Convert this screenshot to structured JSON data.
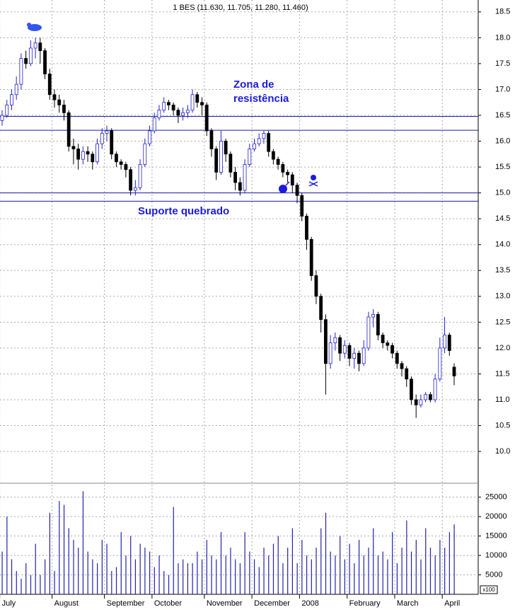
{
  "chart_data": {
    "type": "candlestick",
    "title": "1 BES (11.630, 11.705, 11.280, 11.460)",
    "categories": [
      "July",
      null,
      null,
      null,
      null,
      null,
      null,
      null,
      null,
      null,
      null,
      "August",
      null,
      null,
      null,
      null,
      null,
      null,
      null,
      null,
      null,
      null,
      "September",
      null,
      null,
      null,
      null,
      null,
      null,
      null,
      null,
      null,
      "October",
      null,
      null,
      null,
      null,
      null,
      null,
      null,
      null,
      null,
      null,
      "November",
      null,
      null,
      null,
      null,
      null,
      null,
      null,
      null,
      null,
      "December",
      null,
      null,
      null,
      null,
      null,
      null,
      null,
      null,
      null,
      "2008",
      null,
      null,
      null,
      null,
      null,
      null,
      null,
      null,
      null,
      "February",
      null,
      null,
      null,
      null,
      null,
      null,
      null,
      null,
      null,
      "March",
      null,
      null,
      null,
      null,
      null,
      null,
      null,
      null,
      null,
      "April",
      null,
      null
    ],
    "open": [
      16.4,
      16.5,
      16.7,
      16.9,
      17.1,
      17.6,
      17.5,
      17.8,
      17.9,
      17.75,
      17.3,
      16.9,
      16.8,
      16.7,
      16.55,
      15.9,
      15.85,
      15.65,
      15.8,
      15.75,
      15.6,
      15.95,
      16.15,
      16.2,
      15.75,
      15.6,
      15.55,
      15.45,
      15.05,
      15.1,
      15.55,
      15.95,
      16.2,
      16.45,
      16.6,
      16.75,
      16.7,
      16.6,
      16.5,
      16.55,
      16.6,
      16.9,
      16.75,
      16.7,
      16.2,
      15.85,
      15.4,
      16.0,
      15.75,
      15.4,
      15.2,
      15.05,
      15.55,
      15.85,
      15.95,
      16.05,
      16.15,
      15.8,
      15.65,
      15.55,
      15.4,
      15.35,
      15.15,
      14.95,
      14.55,
      14.1,
      13.4,
      13.0,
      12.55,
      11.7,
      12.1,
      12.2,
      11.9,
      12.05,
      11.8,
      11.9,
      11.7,
      12.0,
      12.6,
      12.65,
      12.25,
      12.1,
      12.05,
      11.9,
      11.7,
      11.6,
      11.4,
      11.0,
      10.9,
      11.0,
      11.1,
      11.0,
      11.4,
      12.0,
      12.25,
      11.63
    ],
    "high": [
      16.6,
      16.8,
      17.0,
      17.25,
      17.7,
      17.75,
      17.95,
      18.0,
      18.0,
      17.8,
      17.4,
      17.0,
      16.9,
      16.8,
      16.6,
      16.05,
      15.95,
      15.9,
      15.9,
      15.8,
      16.05,
      16.25,
      16.3,
      16.25,
      15.8,
      15.65,
      15.6,
      15.5,
      15.25,
      15.65,
      16.05,
      16.3,
      16.55,
      16.7,
      16.85,
      16.8,
      16.75,
      16.65,
      16.65,
      16.7,
      17.0,
      16.95,
      16.85,
      16.75,
      16.25,
      15.9,
      16.2,
      16.05,
      15.8,
      15.5,
      15.3,
      15.65,
      15.95,
      16.05,
      16.15,
      16.2,
      16.2,
      15.85,
      15.7,
      15.6,
      15.45,
      15.4,
      15.2,
      15.0,
      14.6,
      14.15,
      13.5,
      13.05,
      12.65,
      12.25,
      12.3,
      12.25,
      12.15,
      12.1,
      12.0,
      11.95,
      12.15,
      12.7,
      12.75,
      12.7,
      12.3,
      12.15,
      12.1,
      11.95,
      11.75,
      11.65,
      11.45,
      11.1,
      11.1,
      11.15,
      11.15,
      11.5,
      12.2,
      12.6,
      12.3,
      11.705
    ],
    "low": [
      16.3,
      16.45,
      16.6,
      16.8,
      17.0,
      17.4,
      17.45,
      17.6,
      17.5,
      17.2,
      16.8,
      16.65,
      16.55,
      16.4,
      15.8,
      15.55,
      15.45,
      15.55,
      15.6,
      15.45,
      15.55,
      15.85,
      16.0,
      15.65,
      15.5,
      15.45,
      15.3,
      14.95,
      14.95,
      15.05,
      15.5,
      15.9,
      16.15,
      16.4,
      16.55,
      16.6,
      16.5,
      16.35,
      16.4,
      16.45,
      16.55,
      16.65,
      16.5,
      16.1,
      15.7,
      15.25,
      15.35,
      15.6,
      15.3,
      15.05,
      14.95,
      15.0,
      15.5,
      15.8,
      15.9,
      15.95,
      15.7,
      15.55,
      15.45,
      15.3,
      15.2,
      15.0,
      14.8,
      14.45,
      13.9,
      13.3,
      12.85,
      12.3,
      11.1,
      11.6,
      11.95,
      11.75,
      11.8,
      11.65,
      11.6,
      11.55,
      11.65,
      11.95,
      12.4,
      12.15,
      12.0,
      11.95,
      11.8,
      11.6,
      11.45,
      11.25,
      10.9,
      10.65,
      10.85,
      10.95,
      10.95,
      10.95,
      11.35,
      11.9,
      11.85,
      11.28
    ],
    "close": [
      16.5,
      16.7,
      16.9,
      17.1,
      17.6,
      17.5,
      17.8,
      17.9,
      17.75,
      17.3,
      16.9,
      16.8,
      16.7,
      16.55,
      15.9,
      15.85,
      15.65,
      15.8,
      15.75,
      15.6,
      15.95,
      16.15,
      16.2,
      15.75,
      15.6,
      15.55,
      15.45,
      15.05,
      15.1,
      15.55,
      15.95,
      16.2,
      16.45,
      16.6,
      16.75,
      16.7,
      16.6,
      16.5,
      16.55,
      16.6,
      16.9,
      16.75,
      16.7,
      16.2,
      15.85,
      15.4,
      16.0,
      15.75,
      15.4,
      15.2,
      15.05,
      15.55,
      15.85,
      15.95,
      16.05,
      16.15,
      15.8,
      15.65,
      15.55,
      15.4,
      15.35,
      15.15,
      14.95,
      14.55,
      14.1,
      13.4,
      13.0,
      12.55,
      11.7,
      12.1,
      12.2,
      11.9,
      12.05,
      11.8,
      11.9,
      11.7,
      12.0,
      12.6,
      12.65,
      12.25,
      12.1,
      12.05,
      11.9,
      11.7,
      11.6,
      11.4,
      11.0,
      10.9,
      11.0,
      11.1,
      11.0,
      11.4,
      12.0,
      12.25,
      11.95,
      11.46
    ],
    "volume": [
      11000,
      20000,
      9000,
      6000,
      4000,
      8000,
      5000,
      13000,
      5000,
      9000,
      21000,
      6000,
      24000,
      23000,
      17000,
      14000,
      12000,
      26500,
      11000,
      9000,
      8000,
      14000,
      13000,
      6000,
      7000,
      16000,
      10000,
      15000,
      9000,
      13000,
      12000,
      11000,
      7000,
      10000,
      6000,
      5000,
      22500,
      8000,
      9000,
      8000,
      8000,
      11000,
      9000,
      14000,
      10000,
      9000,
      16000,
      10000,
      12000,
      9000,
      8000,
      16000,
      11000,
      9000,
      7000,
      12000,
      10000,
      13000,
      15000,
      8000,
      12000,
      17000,
      8000,
      14000,
      10000,
      9000,
      12000,
      17000,
      21000,
      11000,
      10000,
      15000,
      9000,
      13000,
      8000,
      14000,
      10000,
      12000,
      17000,
      10000,
      11000,
      9000,
      16000,
      8000,
      12000,
      19000,
      11000,
      14000,
      9000,
      17000,
      12000,
      10000,
      14000,
      12000,
      16000,
      18000
    ],
    "ylim": [
      9.7,
      18.73
    ],
    "yticks": [
      18.5,
      {
        "value": 18,
        "label": "18.0"
      },
      17.5,
      {
        "value": 17,
        "label": "17.0"
      },
      16.5,
      {
        "value": 16,
        "label": "16.0"
      },
      15.5,
      {
        "value": 15,
        "label": "15.0"
      },
      14.5,
      {
        "value": 14,
        "label": "14.0"
      },
      13.5,
      {
        "value": 13,
        "label": "13.0"
      },
      12.5,
      {
        "value": 12,
        "label": "12.0"
      },
      11.5,
      {
        "value": 11,
        "label": "11.0"
      },
      10.5,
      {
        "value": 10,
        "label": "10.0"
      }
    ],
    "y2lim": [
      0,
      28400
    ],
    "y2ticks": [
      25000,
      20000,
      15000,
      10000,
      5000
    ],
    "y2_unit_label": "x100",
    "hlines": [
      16.48,
      16.21,
      15.0,
      14.84
    ],
    "annotations": [
      "Zona de",
      "resistência",
      "Suporte quebrado"
    ],
    "up_color": "#2222cc",
    "down_color": "#000000",
    "volume_color": "#2222aa",
    "line_color": "#1a1aa8",
    "grid": true
  }
}
